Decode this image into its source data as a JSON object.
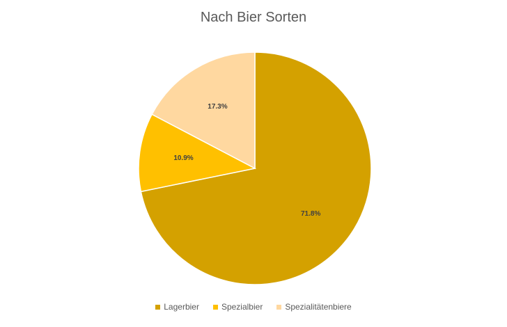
{
  "chart_data": {
    "type": "pie",
    "title": "Nach Bier Sorten",
    "categories": [
      "Lagerbier",
      "Spezialbier",
      "Spezialitätenbiere"
    ],
    "values": [
      71.8,
      10.9,
      17.3
    ],
    "data_labels": [
      "71.8%",
      "10.9%",
      "17.3%"
    ],
    "colors": [
      "#D4A100",
      "#FFC000",
      "#FFD8A0"
    ],
    "start_angle_deg": 0,
    "direction": "clockwise",
    "legend_position": "bottom"
  }
}
